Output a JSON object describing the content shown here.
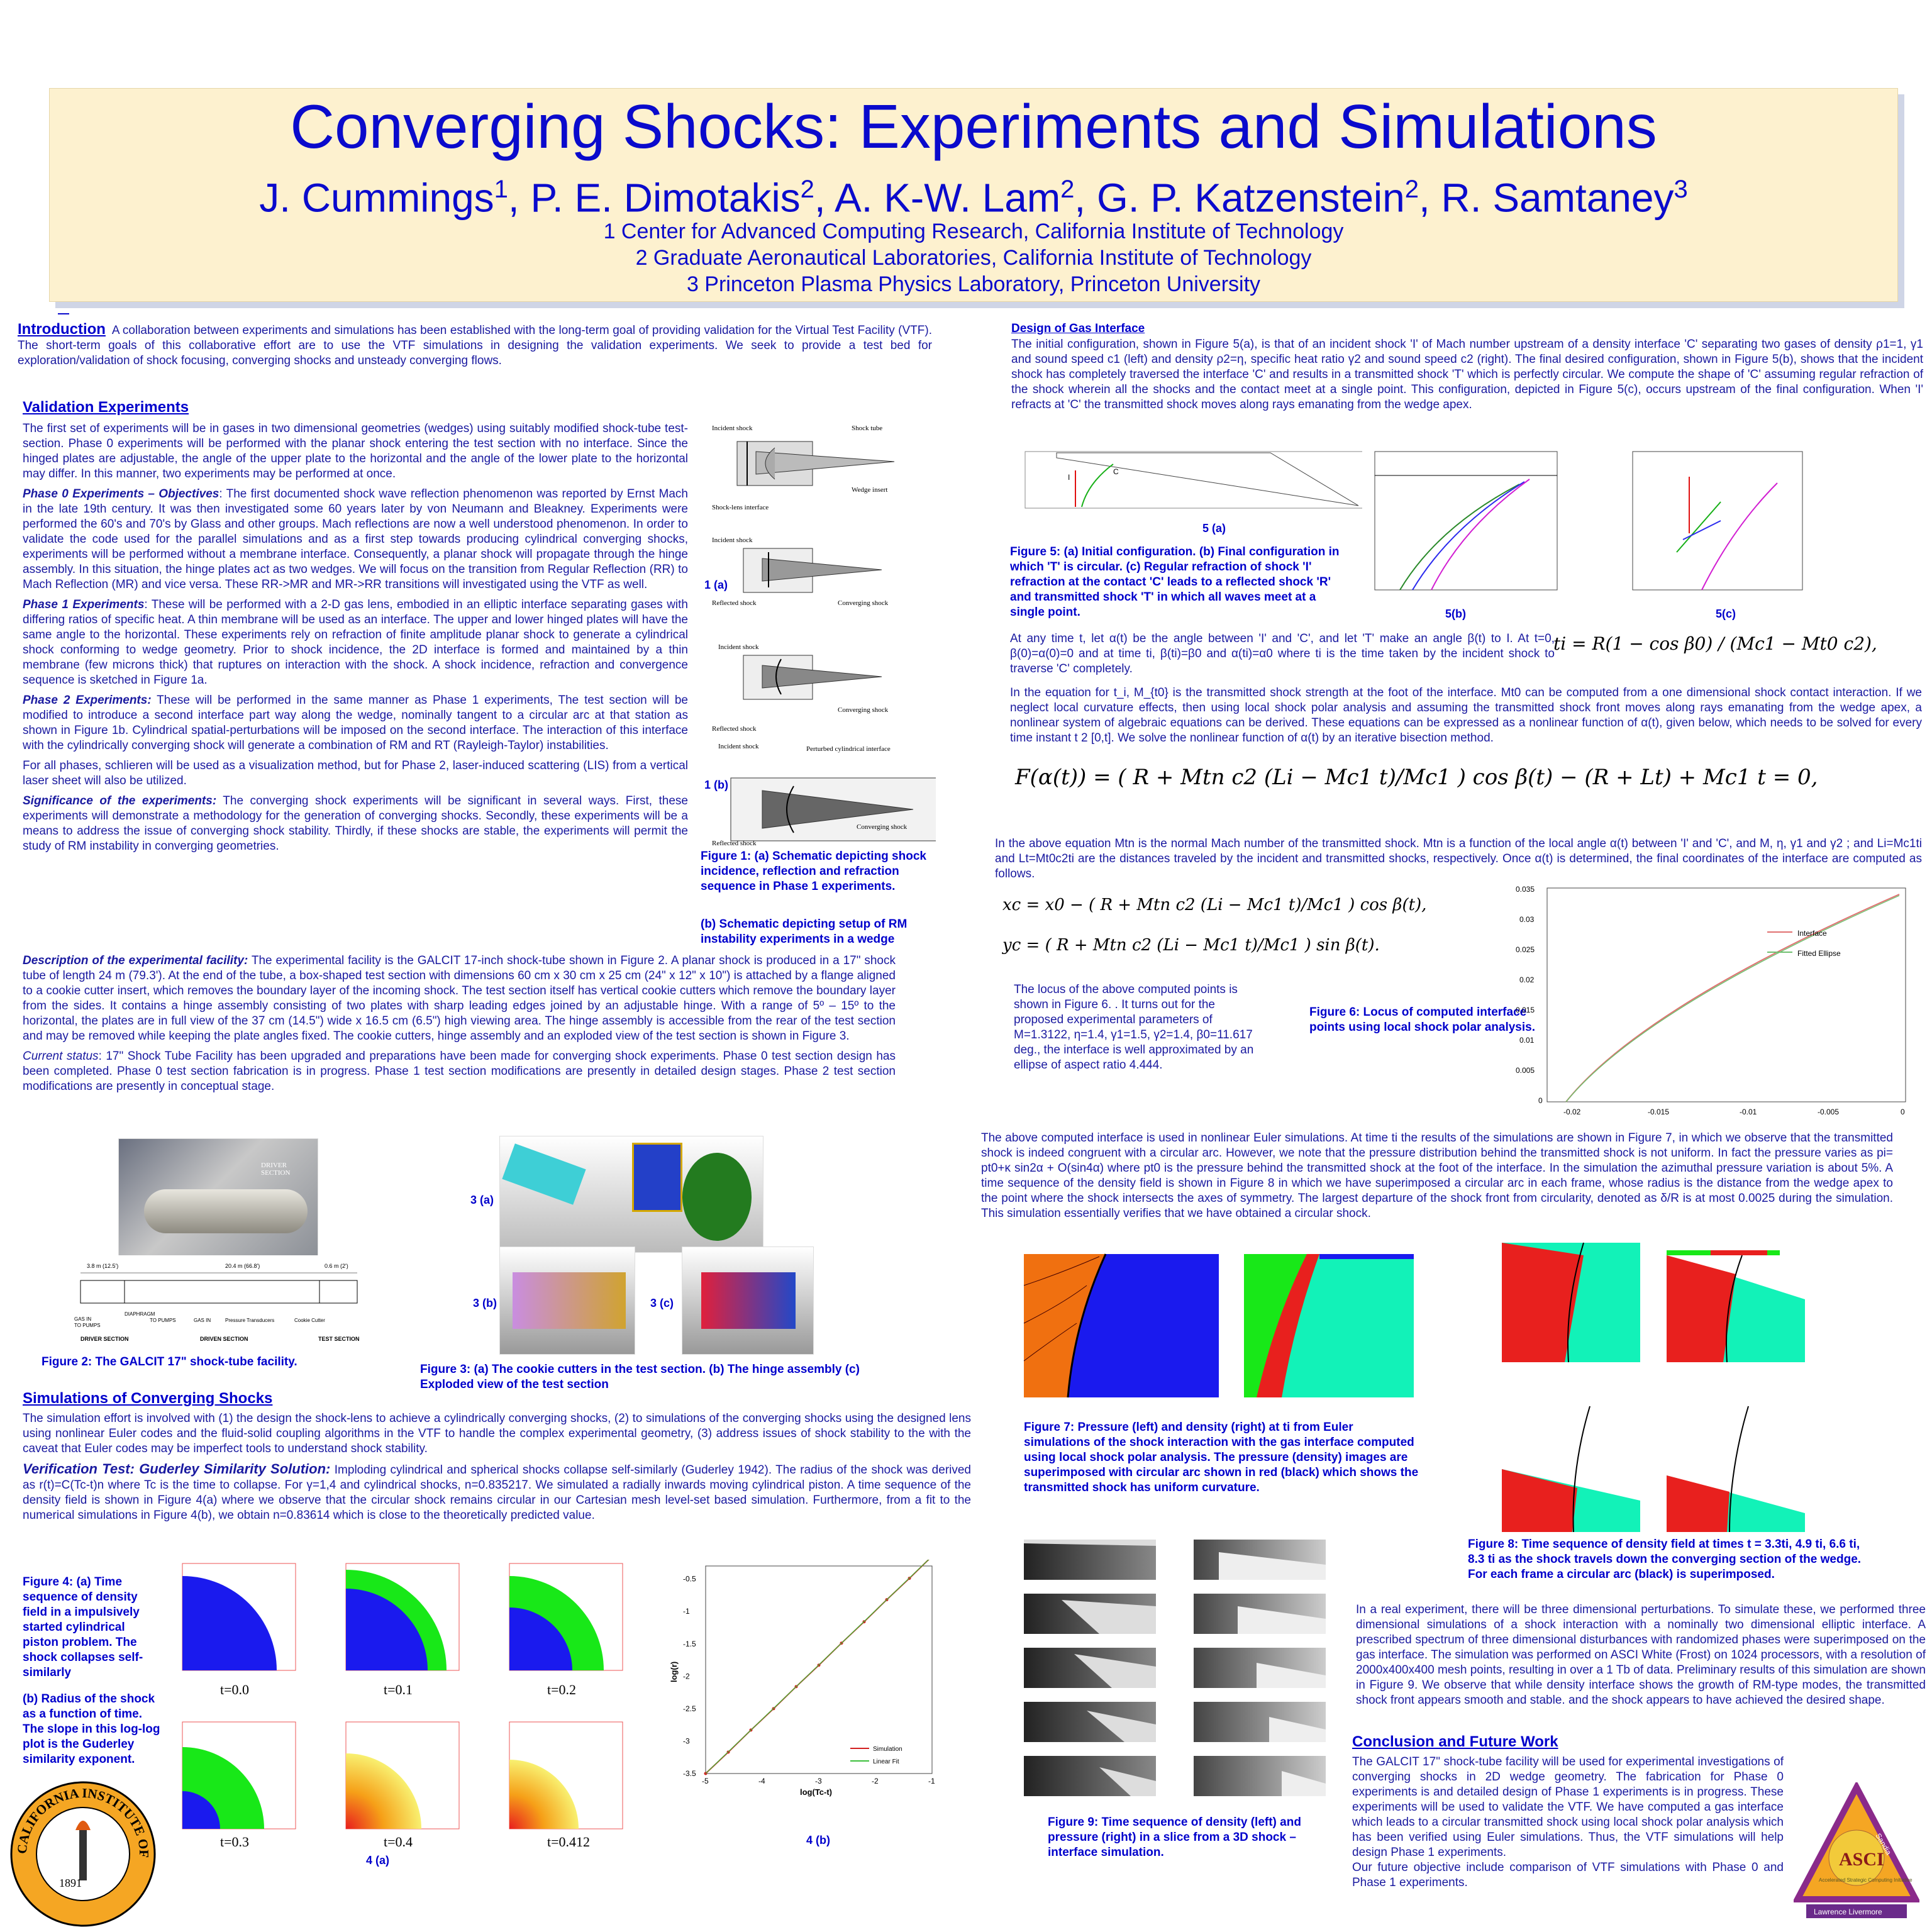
{
  "title": {
    "main": "Converging Shocks: Experiments and Simulations",
    "authors": "J. Cummings1, P. E. Dimotakis2, A. K-W. Lam2, G. P. Katzenstein2, R. Samtaney3",
    "aff1": "1 Center for Advanced Computing Research, California Institute of Technology",
    "aff2": "2 Graduate Aeronautical Laboratories, California Institute of Technology",
    "aff3": "3 Princeton Plasma Physics Laboratory, Princeton University"
  },
  "intro": {
    "heading": "Introduction",
    "text": "A collaboration between experiments and simulations has been established with the long-term goal of providing validation for the Virtual Test Facility (VTF). The short-term goals of this collaborative effort are to use the VTF simulations in designing the validation experiments. We seek to provide a test bed for exploration/validation of shock focusing, converging shocks and unsteady converging flows."
  },
  "validation": {
    "heading": "Validation Experiments",
    "p1": "The first set of experiments will be in gases in two dimensional geometries (wedges) using suitably modified shock-tube test-section. Phase 0 experiments will be performed with the planar shock entering the test section with no interface. Since the hinged plates are adjustable, the angle of the upper plate to the horizontal and the angle of the lower plate to the horizontal may differ. In this manner, two experiments may be performed at once.",
    "p2_label": "Phase 0 Experiments – Objectives",
    "p2": ": The first documented shock wave reflection phenomenon was reported by Ernst Mach in the late 19th century. It was then investigated some 60 years later by von Neumann and Bleakney. Experiments were performed the 60's and 70's by Glass and other groups. Mach reflections are now a well understood phenomenon. In order to validate the code used for the parallel simulations and as a first step towards producing cylindrical converging shocks, experiments will be performed without a membrane interface. Consequently, a planar shock will propagate through the hinge assembly. In this situation, the hinge plates act as two wedges. We will focus on the transition from Regular Reflection (RR) to Mach Reflection (MR) and vice versa. These RR->MR and MR->RR transitions will investigated using the VTF as well.",
    "p3_label": "Phase 1 Experiments",
    "p3": ": These will be performed with a 2-D gas lens, embodied in an elliptic interface separating gases with differing ratios of specific heat. A thin membrane will be used as an interface. The upper and lower hinged plates will have the same angle to the horizontal. These experiments rely on refraction of finite amplitude planar shock to generate a cylindrical shock conforming to wedge geometry. Prior to shock incidence, the 2D interface is formed and maintained by a thin membrane (few microns thick) that ruptures on interaction with the shock. A shock incidence, refraction and convergence sequence is sketched in Figure 1a.",
    "p4_label": "Phase 2 Experiments:",
    "p4": " These will be performed in the same manner as Phase 1 experiments, The test section will be modified to introduce a second interface part way along the wedge, nominally tangent to a circular arc at that station as shown in Figure 1b. Cylindrical spatial-perturbations will be imposed on the second interface. The interaction of this interface with the cylindrically converging shock will generate a combination of RM and RT (Rayleigh-Taylor) instabilities.",
    "p5": "For all phases, schlieren will be used as a visualization method, but for Phase 2, laser-induced scattering (LIS) from a vertical laser sheet will also be utilized.",
    "p6_label": "Significance of the experiments:",
    "p6": " The converging shock experiments will be significant in several ways. First, these experiments will demonstrate a methodology for the generation of converging shocks. Secondly, these experiments will be a means to address the issue of converging shock stability. Thirdly, if these shocks are stable, the experiments will permit the study of RM instability in converging geometries.",
    "p7_label": "Description of the experimental facility:",
    "p7": " The experimental facility is the GALCIT 17-inch shock-tube shown in Figure 2. A planar shock is produced in a 17\" shock tube of length 24 m (79.3'). At the end of the tube, a box-shaped test section with dimensions 60 cm x 30 cm x 25 cm (24\" x 12\" x 10\") is attached by a flange aligned to a cookie cutter insert, which removes the boundary layer of the incoming shock. The test section itself has vertical cookie cutters which remove the boundary layer from the sides. It contains a hinge assembly consisting of two plates with sharp leading edges joined by an adjustable hinge. With a range of 5º – 15º to the horizontal, the plates are in full view of the 37 cm (14.5\") wide x 16.5 cm (6.5\") high viewing area. The hinge assembly is accessible from the rear of the test section and may be removed while keeping the plate angles fixed. The cookie cutters, hinge assembly and an exploded view of the test section is shown in Figure 3.",
    "p8_label": "Current status",
    "p8": ": 17\" Shock Tube Facility has been upgraded and preparations have been made for converging shock experiments. Phase 0 test section design has been completed. Phase 0 test section fabrication is in progress. Phase 1 test section modifications are presently in detailed design stages. Phase 2 test section modifications are presently in conceptual stage."
  },
  "fig1": {
    "label_a": "1 (a)",
    "label_b": "1 (b)",
    "caption_a": "Figure 1: (a) Schematic depicting shock incidence, reflection and refraction sequence in Phase 1 experiments.",
    "caption_b": "(b) Schematic depicting setup of RM instability experiments in a wedge",
    "labels": [
      "Incident shock",
      "Shock tube",
      "Shock-lens interface",
      "Wedge insert",
      "Incident shock",
      "Reflected shock",
      "Converging shock",
      "Incident shock",
      "Converging shock",
      "Reflected shock",
      "Incident shock",
      "Perturbed cylindrical interface",
      "Converging shock",
      "Reflected shock"
    ]
  },
  "fig2": {
    "caption": "Figure 2: The GALCIT 17\" shock-tube facility.",
    "driver": "DRIVER SECTION",
    "sections": [
      "DRIVER SECTION",
      "DRIVEN SECTION",
      "TEST SECTION"
    ],
    "dims": [
      "3.8 m (12.5')",
      "20.4 m (66.8')",
      "0.6 m (2')"
    ],
    "parts": [
      "GAS IN",
      "TO PUMPS",
      "DIAPHRAGM",
      "TO PUMPS",
      "GAS IN",
      "Pressure Transducers",
      "Cookie Cutter"
    ]
  },
  "fig3": {
    "label_a": "3 (a)",
    "label_b": "3 (b)",
    "label_c": "3 (c)",
    "caption": "Figure 3: (a) The cookie cutters in the test section. (b) The hinge assembly (c) Exploded view of the test section"
  },
  "simulations": {
    "heading": "Simulations of Converging Shocks",
    "p1": "The simulation effort is involved with (1) the design the shock-lens to achieve a cylindrically converging shocks, (2) to simulations of the converging shocks using the designed lens using nonlinear Euler codes and the fluid-solid coupling algorithms in the VTF to handle the complex experimental geometry, (3) address issues of shock stability to the with the caveat that Euler codes may be imperfect tools to understand shock stability.",
    "p2_label": "Verification Test: Guderley Similarity Solution:",
    "p2": " Imploding cylindrical and spherical shocks collapse self-similarly (Guderley 1942). The radius of the shock was derived as r(t)=C(Tc-t)n where Tc is the time to collapse. For γ=1,4 and cylindrical shocks, n=0.835217. We simulated a radially inwards moving cylindrical piston. A time sequence of the density field is shown in Figure 4(a) where we observe that the circular shock remains circular in our Cartesian mesh level-set based simulation. Furthermore, from a fit to the numerical simulations in Figure 4(b), we obtain n=0.83614 which is close to the theoretically predicted value."
  },
  "fig4": {
    "caption_a": "Figure 4: (a) Time sequence of density field in a impulsively started cylindrical piston problem. The shock collapses self-similarly",
    "caption_b": "(b) Radius of the shock as a function of time. The slope in this log-log plot is the Guderley similarity exponent.",
    "times": [
      "t=0.0",
      "t=0.1",
      "t=0.2",
      "t=0.3",
      "t=0.4",
      "t=0.412"
    ],
    "label_a": "4 (a)",
    "label_b": "4 (b)"
  },
  "chart_data": {
    "type": "line",
    "xlabel": "log(Tc-t)",
    "ylabel": "log(r)",
    "xlim": [
      -5,
      -1
    ],
    "ylim": [
      -3.5,
      -0.3
    ],
    "xticks": [
      "-5",
      "-4",
      "-3",
      "-2",
      "-1"
    ],
    "yticks": [
      "-0.5",
      "-1",
      "-1.5",
      "-2",
      "-2.5",
      "-3",
      "-3.5"
    ],
    "series": [
      {
        "name": "Simulation",
        "color": "#d22020",
        "x": [
          -5.0,
          -4.6,
          -4.2,
          -3.8,
          -3.4,
          -3.0,
          -2.6,
          -2.2,
          -1.8,
          -1.4,
          -1.0
        ],
        "y": [
          -3.5,
          -3.17,
          -2.83,
          -2.5,
          -2.16,
          -1.83,
          -1.49,
          -1.16,
          -0.82,
          -0.49,
          -0.15
        ]
      },
      {
        "name": "Linear Fit",
        "color": "#3bbf3b",
        "x": [
          -5.0,
          -1.0
        ],
        "y": [
          -3.5,
          -0.15
        ]
      }
    ]
  },
  "gas": {
    "heading": "Design of Gas Interface",
    "p1": "The initial configuration, shown in Figure 5(a), is that of an incident shock 'I' of Mach number upstream of a density interface 'C' separating two gases of density ρ1=1, γ1 and sound speed c1 (left) and density ρ2=η, specific heat ratio γ2 and sound speed c2 (right). The final desired configuration, shown in Figure 5(b), shows that the incident shock has completely traversed the interface 'C' and results in a transmitted shock 'T' which is perfectly circular. We compute the shape of 'C' assuming regular refraction of the shock wherein all the shocks and the contact meet at a single point. This configuration, depicted in Figure 5(c), occurs upstream of the final configuration. When 'I' refracts at 'C' the transmitted shock moves along rays emanating from the wedge apex.",
    "fig5_label_a": "5 (a)",
    "fig5_label_b": "5(b)",
    "fig5_label_c": "5(c)",
    "fig5_caption": "Figure 5: (a) Initial configuration. (b) Final configuration in which 'T' is circular. (c) Regular refraction of shock 'I' refraction at the contact 'C' leads to a reflected shock 'R' and transmitted shock 'T' in which all waves meet at a single point.",
    "p2": "At any time t, let α(t) be the angle between 'I' and 'C', and let 'T' make an angle β(t) to I. At t=0, β(0)=α(0)=0 and at time ti, β(ti)=β0 and α(ti)=α0 where ti is the time taken by the incident shock to traverse 'C' completely.",
    "p3": "In the equation for t_i, M_{t0} is the transmitted shock strength at the foot of the interface. Mt0 can be computed from a one dimensional shock contact interaction. If we neglect local curvature effects, then using local shock polar analysis and assuming the transmitted shock front moves along rays emanating from the wedge apex, a nonlinear system of algebraic equations can be derived. These equations can be expressed as a nonlinear function of α(t), given below, which needs to be solved for every time instant t 2 [0,t]. We solve the nonlinear function of α(t) by an iterative bisection method.",
    "eq_ti": "ti = R(1 − cos β0) / (Mc1 − Mt0 c2),",
    "eq_F": "F(α(t)) = ( R + Mtn c2 (Li − Mc1 t)/Mc1 ) cos β(t) − (R + Lt) + Mc1 t = 0,",
    "p4": "In the above equation Mtn is the normal Mach number of the transmitted shock. Mtn is a function of the local angle α(t) between 'I' and 'C', and M, η, γ1 and γ2 ; and Li=Mc1ti and Lt=Mt0c2ti are the distances traveled by the incident and transmitted shocks, respectively. Once α(t) is determined, the final coordinates of the interface are computed as follows.",
    "eq_xc": "xc = x0 − ( R + Mtn c2 (Li − Mc1 t)/Mc1 ) cos β(t),",
    "eq_yc": "yc = ( R + Mtn c2 (Li − Mc1 t)/Mc1 ) sin β(t).",
    "p5": "The locus of the above computed points is shown in Figure 6. . It turns out for the proposed experimental parameters of M=1.3122, η=1.4, γ1=1.5, γ2=1.4, β0=11.617 deg., the interface is well approximated by an ellipse of aspect ratio 4.444.",
    "fig6_caption": "Figure 6: Locus of computed interface points using local shock polar analysis.",
    "fig6_legend": [
      "Interface",
      "Fitted Ellipse"
    ],
    "fig6_yticks": [
      "0.035",
      "0.03",
      "0.025",
      "0.02",
      "0.015",
      "0.01",
      "0.005",
      "0"
    ],
    "fig6_xticks": [
      "-0.02",
      "-0.015",
      "-0.01",
      "-0.005",
      "0"
    ]
  },
  "euler": {
    "p1": "The above computed interface is used in nonlinear Euler simulations. At time ti the results of the simulations are shown in Figure 7, in which we observe that the transmitted shock is indeed congruent with a circular arc. However, we note that the pressure distribution behind the transmitted shock is not uniform. In fact the pressure varies as pi= pt0+κ sin2α + O(sin4α) where pt0 is the pressure behind the transmitted shock at the foot of the interface. In the simulation the azimuthal pressure variation is about 5%. A time sequence of the density field is shown in Figure 8 in which we have superimposed a circular arc in each frame, whose radius is the distance from the wedge apex to the point where the shock intersects the axes of symmetry. The largest departure of the shock front from circularity, denoted as δ/R is at most 0.0025 during the simulation. This simulation essentially verifies that we have obtained a circular shock.",
    "fig7_caption": "Figure 7: Pressure (left) and density (right) at ti from Euler simulations of the shock interaction with the gas interface computed using local shock polar analysis. The pressure (density) images are superimposed with circular arc shown in red (black) which shows the transmitted shock has uniform curvature.",
    "fig8_caption": "Figure 8: Time sequence of density field at times t = 3.3ti, 4.9 ti, 6.6 ti, 8.3 ti as the shock travels down the converging section of the wedge. For each frame a circular arc (black) is superimposed.",
    "fig9_caption": "Figure 9: Time sequence of density (left) and pressure (right) in a slice from a 3D shock – interface simulation.",
    "p2": "In a real experiment, there will be three dimensional perturbations. To simulate these, we performed three dimensional simulations of a shock interaction with a nominally two dimensional elliptic interface. A prescribed spectrum of three dimensional disturbances with randomized phases were superimposed on the gas interface. The simulation was performed on ASCI White (Frost) on 1024 processors, with a resolution of 2000x400x400 mesh points, resulting in over a 1 Tb of data. Preliminary results of this simulation are shown in Figure 9. We observe that while density interface shows the growth of RM-type modes, the transmitted shock front appears smooth and stable. and the shock appears to have achieved the desired shape."
  },
  "conclusion": {
    "heading": "Conclusion and Future Work",
    "p1": "The GALCIT 17\" shock-tube facility will be used for experimental investigations of converging shocks in 2D wedge geometry. The fabrication for Phase 0 experiments is and detailed design of Phase 1 experiments is in progress. These experiments will be used to validate the VTF. We have computed a gas interface which leads to a circular transmitted shock using local shock polar analysis which has been verified using Euler simulations. Thus, the VTF simulations will help design Phase 1 experiments.",
    "p2": "Our future objective include comparison of VTF simulations with Phase 0 and Phase 1 experiments."
  },
  "logos": {
    "caltech": "CALIFORNIA INSTITUTE OF TECHNOLOGY",
    "caltech_year": "1891",
    "asci": "ASCI",
    "asci_sub": "Accelerated Strategic Computing Initiative",
    "asci_side": "Sandia",
    "asci_bottom": "Lawrence Livermore"
  },
  "colors": {
    "title": "#0a0acc",
    "title_bg": "#fdf1cf",
    "text": "#1a1aa0",
    "density_red": "#e8201e",
    "density_green": "#18e818",
    "density_cyan": "#12f2b8",
    "density_blue": "#1a1aee"
  }
}
